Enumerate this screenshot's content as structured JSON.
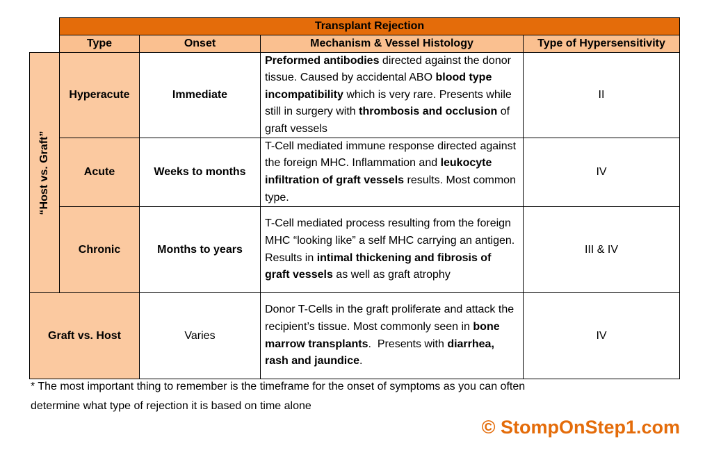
{
  "table": {
    "title": "Transplant Rejection",
    "headers": [
      "Type",
      "Onset",
      "Mechanism & Vessel Histology",
      "Type of Hypersensitivity"
    ],
    "group_label": "“Host vs. Graft”",
    "rows": [
      {
        "type": "Hyperacute",
        "onset": "Immediate",
        "mechanism": [
          {
            "text": "Preformed antibodies",
            "bold": true
          },
          {
            "text": " directed against the donor tissue. Caused by accidental ABO ",
            "bold": false
          },
          {
            "text": "blood type incompatibility",
            "bold": true
          },
          {
            "text": " which is very rare. Presents while still in surgery with ",
            "bold": false
          },
          {
            "text": "thrombosis and occlusion",
            "bold": true
          },
          {
            "text": " of graft vessels",
            "bold": false
          }
        ],
        "hypersensitivity": "II"
      },
      {
        "type": "Acute",
        "onset": "Weeks to months",
        "mechanism": [
          {
            "text": "T-Cell mediated immune response directed against the foreign MHC. Inflammation and ",
            "bold": false
          },
          {
            "text": "leukocyte infiltration of graft vessels",
            "bold": true
          },
          {
            "text": " results. Most common type.",
            "bold": false
          }
        ],
        "hypersensitivity": "IV"
      },
      {
        "type": "Chronic",
        "onset": "Months to years",
        "mechanism": [
          {
            "text": "T-Cell mediated process resulting from the foreign MHC “looking like” a self MHC carrying an antigen. Results in ",
            "bold": false
          },
          {
            "text": "intimal thickening and fibrosis of graft vessels",
            "bold": true
          },
          {
            "text": " as well as graft atrophy",
            "bold": false
          }
        ],
        "hypersensitivity": "III & IV"
      },
      {
        "type": "Graft vs. Host",
        "onset": "Varies",
        "mechanism": [
          {
            "text": "Donor T-Cells in the graft proliferate and attack the recipient’s tissue. Most commonly seen in ",
            "bold": false
          },
          {
            "text": "bone marrow transplants",
            "bold": true
          },
          {
            "text": ".  Presents with ",
            "bold": false
          },
          {
            "text": "diarrhea, rash and jaundice",
            "bold": true
          },
          {
            "text": ".",
            "bold": false
          }
        ],
        "hypersensitivity": "IV"
      }
    ]
  },
  "footnote": [
    "* The most important thing to remember is the timeframe for the onset of symptoms as you can often",
    "determine what type of rejection it is based on time alone"
  ],
  "copyright": "© StompOnStep1.com"
}
